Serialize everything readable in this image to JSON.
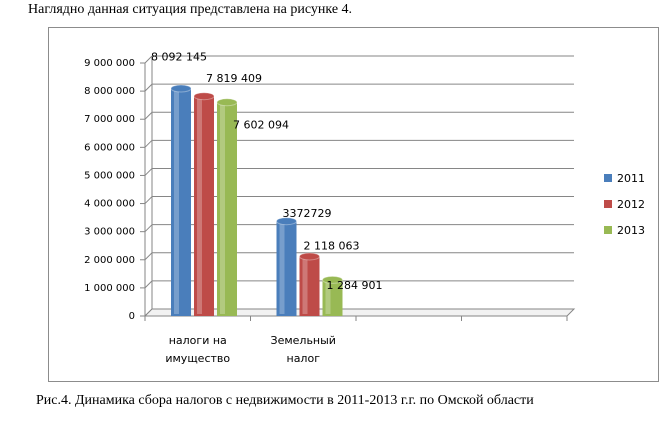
{
  "intro_text": "Наглядно данная ситуация представлена на рисунке 4.",
  "caption": "Рис.4. Динамика сбора налогов с недвижимости в 2011-2013 г.г. по Омской области",
  "colors": {
    "2011": "#4a7ebb",
    "2012": "#be4b48",
    "2013": "#98b954"
  },
  "chart_data": {
    "type": "bar",
    "categories": [
      [
        "налоги на",
        "имущество"
      ],
      [
        "Земельный",
        "налог"
      ]
    ],
    "series": [
      {
        "name": "2011",
        "values": [
          8092145,
          3372729
        ]
      },
      {
        "name": "2012",
        "values": [
          7819409,
          2118063
        ]
      },
      {
        "name": "2013",
        "values": [
          7602094,
          1284901
        ]
      }
    ],
    "data_labels": [
      [
        "8 092 145",
        "3372729"
      ],
      [
        "7 819 409",
        "2 118 063"
      ],
      [
        "7 602 094",
        "1 284 901"
      ]
    ],
    "y_ticks": [
      {
        "value": 0,
        "label": "0"
      },
      {
        "value": 1000000,
        "label": "1 000 000"
      },
      {
        "value": 2000000,
        "label": "2 000 000"
      },
      {
        "value": 3000000,
        "label": "3 000 000"
      },
      {
        "value": 4000000,
        "label": "4 000 000"
      },
      {
        "value": 5000000,
        "label": "5 000 000"
      },
      {
        "value": 6000000,
        "label": "6 000 000"
      },
      {
        "value": 7000000,
        "label": "7 000 000"
      },
      {
        "value": 8000000,
        "label": "8 000 000"
      },
      {
        "value": 9000000,
        "label": "9 000 000"
      }
    ],
    "ylim": [
      0,
      9000000
    ],
    "category_slots": 4,
    "grid": true,
    "legend_position": "right"
  }
}
